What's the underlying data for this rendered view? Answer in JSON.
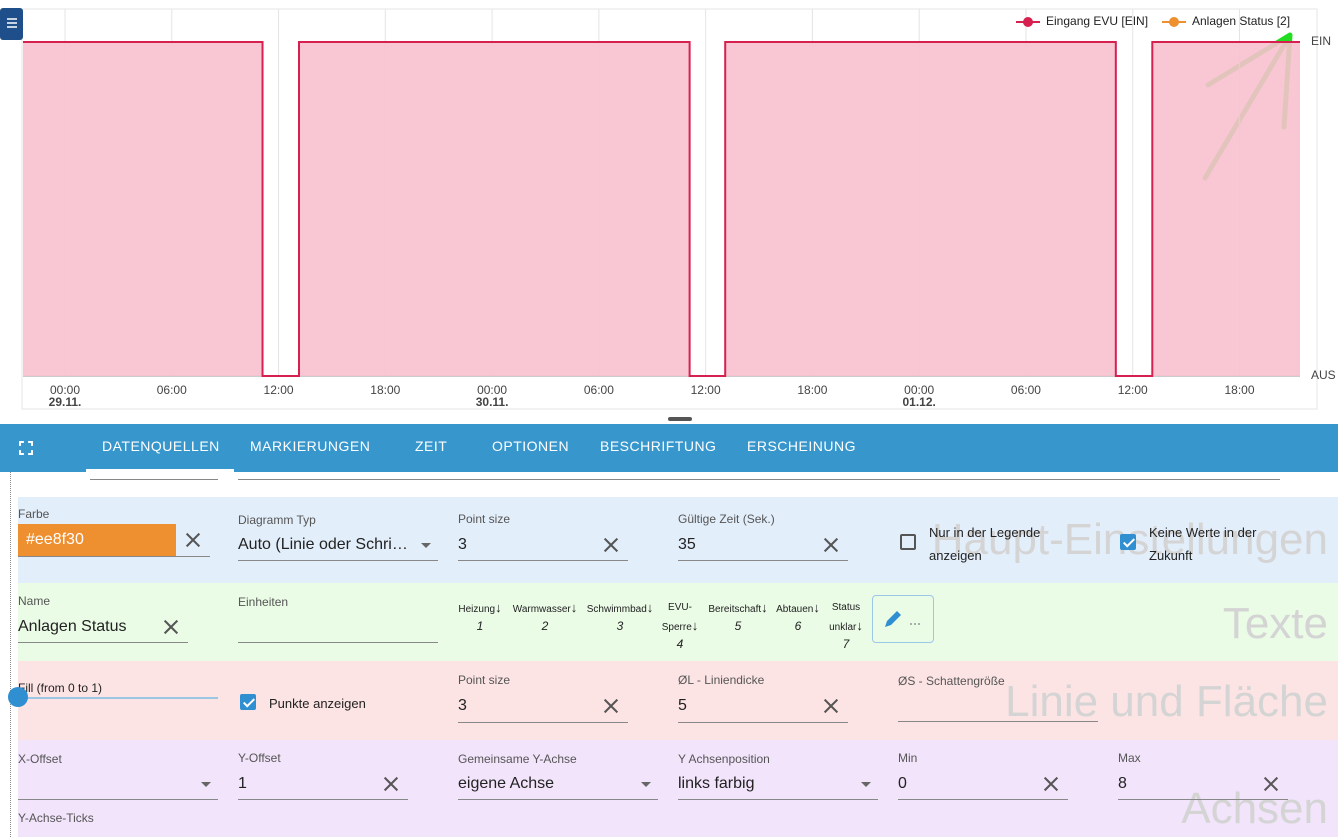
{
  "chart": {
    "type": "step",
    "series": [
      {
        "name": "Eingang EVU [EIN]",
        "color": "#d6204f",
        "fill": "#f8c1ce",
        "x": [
          -2.36,
          11.1,
          11.1,
          13.15,
          13.15,
          35.1,
          35.1,
          37.1,
          37.1,
          59.05,
          59.05,
          61.1,
          61.1,
          69.4
        ],
        "values": [
          1,
          1,
          0,
          0,
          1,
          1,
          0,
          0,
          1,
          1,
          0,
          0,
          1,
          1
        ]
      },
      {
        "name": "Anlagen Status [2]",
        "color": "#ee8f30"
      }
    ],
    "xlim": [
      -2.36,
      69.4
    ],
    "ylim": [
      0,
      1
    ],
    "xticks": [
      {
        "value": 0,
        "label": "00:00"
      },
      {
        "value": 6,
        "label": "06:00"
      },
      {
        "value": 12,
        "label": "12:00"
      },
      {
        "value": 18,
        "label": "18:00"
      },
      {
        "value": 24,
        "label": "00:00"
      },
      {
        "value": 30,
        "label": "06:00"
      },
      {
        "value": 36,
        "label": "12:00"
      },
      {
        "value": 42,
        "label": "18:00"
      },
      {
        "value": 48,
        "label": "00:00"
      },
      {
        "value": 54,
        "label": "06:00"
      },
      {
        "value": 60,
        "label": "12:00"
      },
      {
        "value": 66,
        "label": "18:00"
      }
    ],
    "xtick_dates": [
      {
        "value": 0,
        "label": "29.11."
      },
      {
        "value": 24,
        "label": "30.11."
      },
      {
        "value": 48,
        "label": "01.12."
      }
    ],
    "yticks": [
      {
        "value": 1,
        "label": "EIN"
      },
      {
        "value": 0,
        "label": "AUS"
      }
    ],
    "grid": true
  },
  "tabs": [
    "DATENQUELLEN",
    "MARKIERUNGEN",
    "ZEIT",
    "OPTIONEN",
    "BESCHRIFTUNG",
    "ERSCHEINUNG"
  ],
  "sections": {
    "main": {
      "title": "Haupt-Einstellungen",
      "color_label": "Farbe",
      "color_value": "#ee8f30",
      "chart_type_label": "Diagramm Typ",
      "chart_type": "Auto (Linie oder Schri…",
      "point_size_label": "Point size",
      "point_size": 3,
      "valid_time_label": "Gültige Zeit (Sek.)",
      "valid_time": 35,
      "legend_only": {
        "label": "Nur in der Legende anzeigen",
        "checked": false
      },
      "no_future": {
        "label": "Keine Werte in der Zukunft",
        "checked": true
      }
    },
    "texts": {
      "title": "Texte",
      "name_label": "Name",
      "name": "Anlagen Status",
      "units_label": "Einheiten",
      "states": [
        {
          "name": "Heizung",
          "value": 1
        },
        {
          "name": "Warmwasser",
          "value": 2
        },
        {
          "name": "Schwimmbad",
          "value": 3
        },
        {
          "name": "EVU-Sperre",
          "value": 4
        },
        {
          "name": "Bereitschaft",
          "value": 5
        },
        {
          "name": "Abtauen",
          "value": 6
        },
        {
          "name": "Status unklar",
          "value": 7
        }
      ]
    },
    "line": {
      "title": "Linie und Fläche",
      "fill_label": "Fill (from 0 to 1)",
      "points": {
        "label": "Punkte anzeigen",
        "checked": true
      },
      "point_size_label": "Point size",
      "point_size": 3,
      "line_width_label": "ØL - Liniendicke",
      "line_width": 5,
      "shadow_label": "ØS - Schattengröße"
    },
    "axes": {
      "title": "Achsen",
      "x_offset_label": "X-Offset",
      "y_offset_label": "Y-Offset",
      "y_offset": 1,
      "common_y_label": "Gemeinsame Y-Achse",
      "common_y": "eigene Achse",
      "y_pos_label": "Y Achsenposition",
      "y_pos": "links farbig",
      "min_label": "Min",
      "min": 0,
      "max_label": "Max",
      "max": 8,
      "ticks_label": "Y-Achse-Ticks"
    }
  }
}
